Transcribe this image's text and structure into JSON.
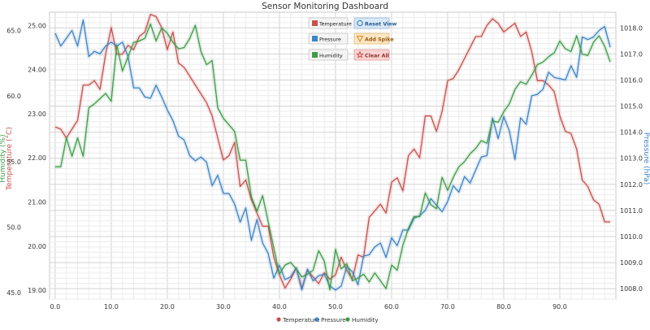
{
  "chart_data": {
    "type": "line",
    "title": "Sensor Monitoring Dashboard",
    "x_ticks": [
      0,
      10,
      20,
      30,
      40,
      50,
      60,
      70,
      80,
      90
    ],
    "x_tick_labels": [
      "0.0",
      "10.0",
      "20.0",
      "30.0",
      "40.0",
      "50.0",
      "60.0",
      "70.0",
      "80.0",
      "90.0"
    ],
    "xlim": [
      -1,
      100
    ],
    "axes": {
      "temperature": {
        "label": "Temperature (°C)",
        "ylim": [
          18.8,
          25.3
        ],
        "ticks": [
          19,
          20,
          21,
          22,
          23,
          24,
          25
        ],
        "tick_labels": [
          "19.00",
          "20.00",
          "21.00",
          "22.00",
          "23.00",
          "24.00",
          "25.00"
        ],
        "color": "#c8504d"
      },
      "humidity": {
        "label": "Humidity (%)",
        "ylim": [
          44.5,
          66.4
        ],
        "ticks": [
          45,
          50,
          55,
          60,
          65
        ],
        "tick_labels": [
          "45.0",
          "50.0",
          "55.0",
          "60.0",
          "65.0"
        ],
        "color": "#3e9b48"
      },
      "pressure": {
        "label": "Pressure (hPa)",
        "ylim": [
          1007.6,
          1018.6
        ],
        "ticks": [
          1008,
          1009,
          1010,
          1011,
          1012,
          1013,
          1014,
          1015,
          1016,
          1017,
          1018
        ],
        "tick_labels": [
          "1008.0",
          "1009.0",
          "1010.0",
          "1011.0",
          "1012.0",
          "1013.0",
          "1014.0",
          "1015.0",
          "1016.0",
          "1017.0",
          "1018.0"
        ],
        "color": "#3c83c6"
      }
    },
    "grid": true,
    "legend_position": "bottom-center",
    "x": [
      0,
      1,
      2,
      3,
      4,
      5,
      6,
      7,
      8,
      9,
      10,
      11,
      12,
      13,
      14,
      15,
      16,
      17,
      18,
      19,
      20,
      21,
      22,
      23,
      24,
      25,
      26,
      27,
      28,
      29,
      30,
      31,
      32,
      33,
      34,
      35,
      36,
      37,
      38,
      39,
      40,
      41,
      42,
      43,
      44,
      45,
      46,
      47,
      48,
      49,
      50,
      51,
      52,
      53,
      54,
      55,
      56,
      57,
      58,
      59,
      60,
      61,
      62,
      63,
      64,
      65,
      66,
      67,
      68,
      69,
      70,
      71,
      72,
      73,
      74,
      75,
      76,
      77,
      78,
      79,
      80,
      81,
      82,
      83,
      84,
      85,
      86,
      87,
      88,
      89,
      90,
      91,
      92,
      93,
      94,
      95,
      96,
      97,
      98,
      99
    ],
    "series": [
      {
        "name": "Temperature",
        "axis": "temperature",
        "color": "#c8504d",
        "values": [
          22.7,
          22.65,
          22.45,
          22.65,
          22.85,
          23.65,
          23.65,
          23.75,
          23.55,
          24.35,
          24.95,
          24.35,
          24.35,
          24.55,
          24.45,
          24.75,
          24.85,
          25.25,
          25.2,
          24.95,
          24.45,
          24.85,
          24.15,
          24.05,
          23.85,
          23.65,
          23.45,
          23.25,
          22.95,
          22.45,
          21.95,
          22.05,
          22.35,
          21.35,
          21.5,
          21.05,
          20.75,
          20.45,
          20.45,
          19.75,
          19.35,
          19.05,
          19.25,
          19.5,
          19.05,
          19.45,
          19.3,
          19.15,
          19.4,
          19.25,
          19.35,
          19.75,
          19.45,
          19.25,
          19.8,
          19.75,
          20.65,
          20.8,
          20.95,
          20.75,
          21.45,
          21.55,
          21.25,
          22.05,
          22.2,
          22.0,
          22.95,
          22.95,
          22.6,
          23.05,
          23.75,
          23.8,
          24.0,
          24.25,
          24.5,
          24.75,
          24.75,
          25.0,
          25.15,
          25.05,
          24.85,
          24.95,
          25.05,
          24.75,
          24.85,
          24.4,
          23.75,
          23.75,
          23.65,
          23.5,
          22.95,
          22.6,
          22.55,
          22.2,
          21.5,
          21.35,
          21.05,
          20.95,
          20.55,
          20.55
        ]
      },
      {
        "name": "Pressure",
        "axis": "pressure",
        "color": "#3c83c6",
        "values": [
          1017.8,
          1017.3,
          1017.6,
          1017.9,
          1017.3,
          1018.3,
          1016.9,
          1017.1,
          1017.0,
          1017.3,
          1017.45,
          1017.3,
          1017.45,
          1016.9,
          1015.7,
          1015.7,
          1015.35,
          1015.3,
          1015.8,
          1015.35,
          1014.85,
          1014.45,
          1013.85,
          1013.7,
          1013.1,
          1012.9,
          1013.05,
          1012.85,
          1011.95,
          1012.35,
          1011.65,
          1011.65,
          1011.25,
          1010.55,
          1011.1,
          1009.85,
          1010.65,
          1009.75,
          1009.35,
          1008.4,
          1008.9,
          1008.35,
          1008.45,
          1008.8,
          1007.95,
          1008.75,
          1008.3,
          1008.5,
          1008.55,
          1008.1,
          1007.95,
          1008.1,
          1008.85,
          1008.65,
          1008.15,
          1009.25,
          1009.3,
          1009.6,
          1009.75,
          1009.2,
          1009.95,
          1009.65,
          1010.25,
          1010.25,
          1010.7,
          1010.8,
          1011.0,
          1011.45,
          1011.2,
          1010.95,
          1011.35,
          1011.95,
          1011.7,
          1012.3,
          1012.05,
          1012.55,
          1013.05,
          1013.1,
          1014.55,
          1013.75,
          1014.6,
          1014.05,
          1012.95,
          1014.55,
          1014.3,
          1015.4,
          1015.45,
          1015.65,
          1016.3,
          1016.1,
          1016.05,
          1016.0,
          1016.55,
          1016.1,
          1017.65,
          1017.55,
          1017.65,
          1017.9,
          1018.05,
          1017.25
        ]
      },
      {
        "name": "Humidity",
        "axis": "humidity",
        "color": "#3e9b48",
        "values": [
          54.6,
          54.6,
          56.8,
          55.4,
          56.8,
          55.4,
          59.1,
          59.4,
          59.8,
          60.2,
          59.6,
          63.9,
          61.9,
          63.0,
          64.1,
          64.2,
          64.4,
          65.5,
          64.2,
          65.2,
          64.8,
          64.1,
          63.6,
          63.7,
          64.4,
          65.4,
          63.4,
          62.4,
          62.7,
          59.1,
          58.3,
          57.8,
          57.3,
          55.1,
          55.1,
          52.3,
          51.2,
          52.4,
          50.4,
          48.4,
          46.4,
          47.1,
          47.3,
          46.8,
          46.2,
          46.4,
          46.7,
          48.2,
          47.4,
          45.2,
          48.3,
          46.8,
          47.2,
          45.9,
          46.1,
          46.4,
          45.8,
          46.5,
          45.9,
          45.3,
          47.1,
          46.7,
          48.6,
          49.9,
          50.8,
          50.8,
          52.6,
          51.7,
          51.4,
          53.8,
          52.8,
          53.8,
          54.6,
          55.0,
          55.6,
          56.0,
          56.6,
          56.4,
          58.1,
          58.0,
          58.8,
          59.4,
          60.5,
          61.1,
          60.9,
          61.6,
          62.4,
          62.6,
          63.0,
          63.3,
          64.2,
          63.6,
          63.4,
          64.6,
          63.2,
          63.1,
          64.1,
          64.6,
          63.8,
          62.6
        ]
      }
    ]
  },
  "controls": {
    "legend_boxes": [
      {
        "label": "Temperature",
        "color": "#c8504d"
      },
      {
        "label": "Pressure",
        "color": "#3c83c6"
      },
      {
        "label": "Humidity",
        "color": "#3e9b48"
      }
    ],
    "buttons": [
      {
        "label": "Reset View",
        "icon": "circle-icon",
        "bg": "#d8e8f6",
        "border": "#8fb4d8",
        "icon_color": "#3c83c6",
        "text_color": "#2a5d8f"
      },
      {
        "label": "Add Spike",
        "icon": "triangle-icon",
        "bg": "#fbe7c4",
        "border": "#e6b871",
        "icon_color": "#e08a1e",
        "text_color": "#9a5a10"
      },
      {
        "label": "Clear All",
        "icon": "star-icon",
        "bg": "#f8d4d2",
        "border": "#e09a96",
        "icon_color": "#c8504d",
        "text_color": "#8f2f2c"
      }
    ]
  },
  "legend": {
    "items": [
      {
        "label": "Temperature",
        "color": "#c8504d"
      },
      {
        "label": "Pressure",
        "color": "#3c83c6"
      },
      {
        "label": "Humidity",
        "color": "#3e9b48"
      }
    ]
  }
}
